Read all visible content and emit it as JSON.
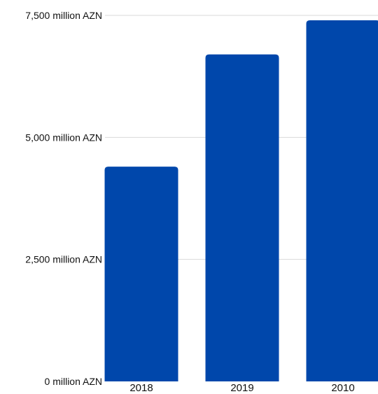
{
  "chart_data": {
    "type": "bar",
    "categories": [
      "2018",
      "2019",
      "2010"
    ],
    "values": [
      4400,
      6700,
      7400
    ],
    "ylim": [
      0,
      7500
    ],
    "y_ticks": [
      {
        "value": 0,
        "label": "0 million AZN"
      },
      {
        "value": 2500,
        "label": "2,500 million AZN"
      },
      {
        "value": 5000,
        "label": "5,000 million AZN"
      },
      {
        "value": 7500,
        "label": "7,500 million AZN"
      }
    ],
    "grid": true,
    "legend": "none",
    "bar_color": "#0047ab",
    "grid_color": "#d9d9d9"
  }
}
